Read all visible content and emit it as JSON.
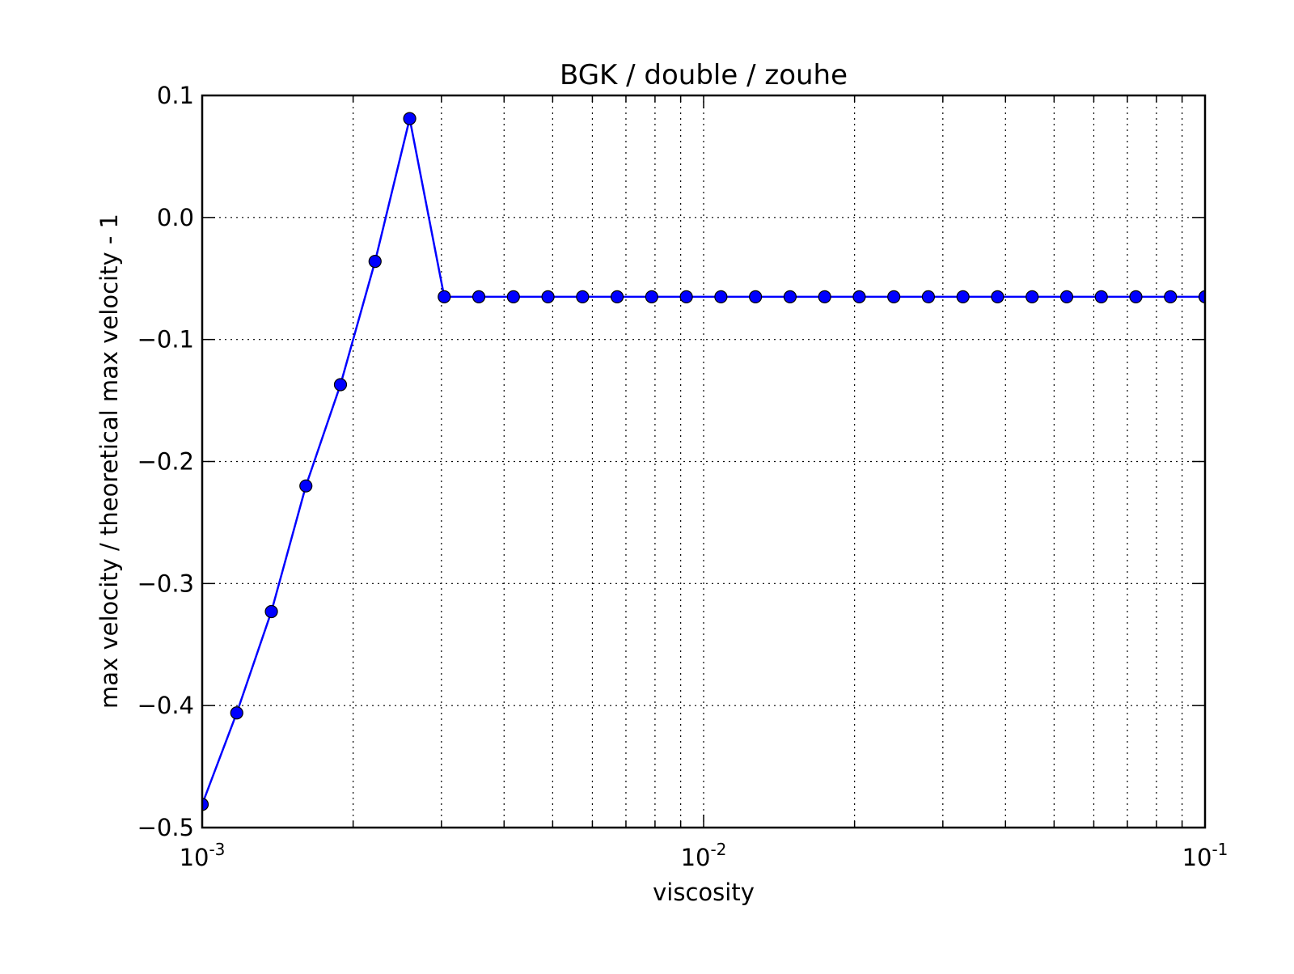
{
  "chart_data": {
    "type": "line",
    "title": "BGK / double / zouhe",
    "xlabel": "viscosity",
    "ylabel": "max velocity / theoretical max velocity - 1",
    "xscale": "log",
    "xlim": [
      0.001,
      0.1
    ],
    "ylim": [
      -0.5,
      0.1
    ],
    "grid": true,
    "x_ticks": [
      {
        "value": 0.001,
        "base": "10",
        "exp": "-3"
      },
      {
        "value": 0.01,
        "base": "10",
        "exp": "-2"
      },
      {
        "value": 0.1,
        "base": "10",
        "exp": "-1"
      }
    ],
    "y_ticks": [
      {
        "value": 0.1,
        "label": "0.1"
      },
      {
        "value": 0.0,
        "label": "0.0"
      },
      {
        "value": -0.1,
        "label": "−0.1"
      },
      {
        "value": -0.2,
        "label": "−0.2"
      },
      {
        "value": -0.3,
        "label": "−0.3"
      },
      {
        "value": -0.4,
        "label": "−0.4"
      },
      {
        "value": -0.5,
        "label": "−0.5"
      }
    ],
    "series": [
      {
        "color": "#0000ff",
        "marker": "circle",
        "x": [
          0.001,
          0.001172,
          0.001374,
          0.00161,
          0.001887,
          0.002212,
          0.002593,
          0.003039,
          0.003562,
          0.004175,
          0.004894,
          0.005736,
          0.006723,
          0.00788,
          0.009237,
          0.010826,
          0.01269,
          0.014874,
          0.017434,
          0.020434,
          0.023951,
          0.028072,
          0.032903,
          0.038566,
          0.045204,
          0.052983,
          0.062102,
          0.07279,
          0.085317,
          0.1
        ],
        "y": [
          -0.481,
          -0.406,
          -0.323,
          -0.22,
          -0.137,
          -0.036,
          0.081,
          -0.065,
          -0.065,
          -0.065,
          -0.065,
          -0.065,
          -0.065,
          -0.065,
          -0.065,
          -0.065,
          -0.065,
          -0.065,
          -0.065,
          -0.065,
          -0.065,
          -0.065,
          -0.065,
          -0.065,
          -0.065,
          -0.065,
          -0.065,
          -0.065,
          -0.065,
          -0.065
        ]
      }
    ]
  }
}
